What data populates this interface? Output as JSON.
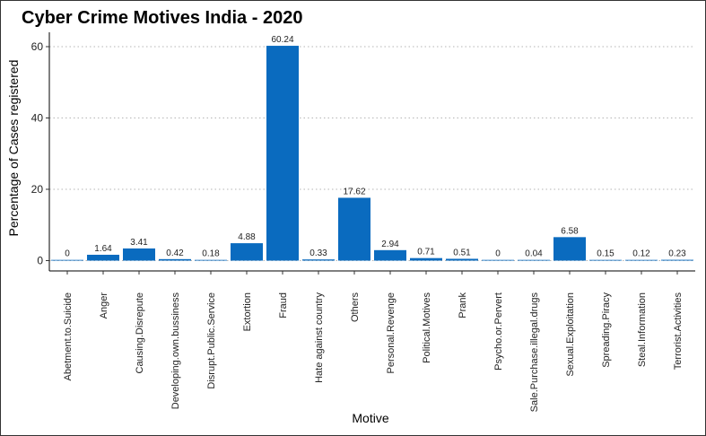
{
  "chart_data": {
    "type": "bar",
    "title": "Cyber Crime Motives India - 2020",
    "xlabel": "Motive",
    "ylabel": "Percentage of Cases registered",
    "ylim": [
      0,
      63
    ],
    "yticks": [
      0,
      20,
      40,
      60
    ],
    "grid": "horizontal-dotted",
    "bar_color": "#0a6bbf",
    "categories": [
      "Abetment.to.Suicide",
      "Anger",
      "Causing.Disrepute",
      "Developing.own.bussiness",
      "Disrupt.Public.Service",
      "Extortion",
      "Fraud",
      "Hate against country",
      "Others",
      "Personal.Revenge",
      "Political.Motives",
      "Prank",
      "Psycho.or.Pervert",
      "Sale.Purchase.illegal.drugs",
      "Sexual.Exploitation",
      "Spreading.Piracy",
      "Steal.Information",
      "Terrorist.Activities"
    ],
    "values": [
      0,
      1.64,
      3.41,
      0.42,
      0.18,
      4.88,
      60.24,
      0.33,
      17.62,
      2.94,
      0.71,
      0.51,
      0,
      0.04,
      6.58,
      0.15,
      0.12,
      0.23
    ],
    "labels": [
      "0",
      "1.64",
      "3.41",
      "0.42",
      "0.18",
      "4.88",
      "60.24",
      "0.33",
      "17.62",
      "2.94",
      "0.71",
      "0.51",
      "0",
      "0.04",
      "6.58",
      "0.15",
      "0.12",
      "0.23"
    ]
  }
}
